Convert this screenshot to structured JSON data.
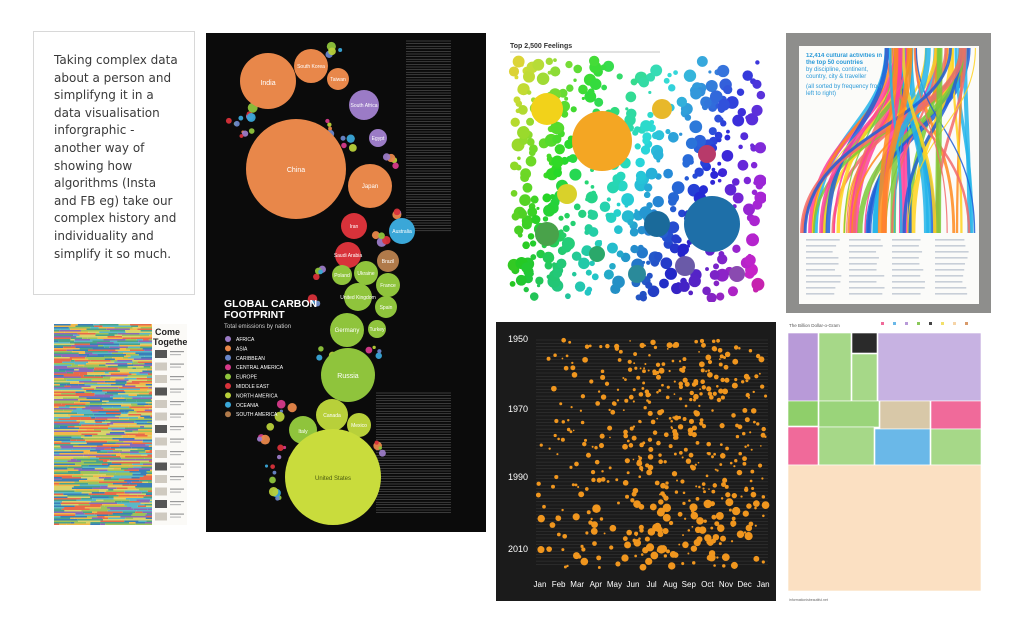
{
  "note": {
    "text": "Taking complex data about a person and simplifyng it in a data visualisation inforgraphic - another way of showing how algorithms (Insta and FB eg) take our complex history and individuality and simplify it so much."
  },
  "come_together": {
    "title_line1": "Come",
    "title_line2": "Together"
  },
  "carbon": {
    "title_line1": "GLOBAL CARBON",
    "title_line2": "FOOTPRINT",
    "subtitle": "Total emissions by nation",
    "legend": [
      {
        "label": "AFRICA",
        "color": "#9b7bc6"
      },
      {
        "label": "ASIA",
        "color": "#e8874a"
      },
      {
        "label": "CARIBBEAN",
        "color": "#6a86c9"
      },
      {
        "label": "CENTRAL AMERICA",
        "color": "#d63a8a"
      },
      {
        "label": "EUROPE",
        "color": "#8fc43c"
      },
      {
        "label": "MIDDLE EAST",
        "color": "#d8323a"
      },
      {
        "label": "NORTH AMERICA",
        "color": "#b8d03a"
      },
      {
        "label": "OCEANIA",
        "color": "#3aa7d8"
      },
      {
        "label": "SOUTH AMERICA",
        "color": "#b07a4a"
      }
    ],
    "countries": {
      "india": "India",
      "south_korea": "South Korea",
      "taiwan": "Taiwan",
      "china": "China",
      "japan": "Japan",
      "south_africa": "South Africa",
      "egypt": "Egypt",
      "australia": "Australia",
      "saudi": "Saudi Arabia",
      "brazil": "Brazil",
      "iran": "Iran",
      "poland": "Poland",
      "ukraine": "Ukraine",
      "france": "France",
      "uk": "United Kingdom",
      "spain": "Spain",
      "germany": "Germany",
      "turkey": "Turkey",
      "russia": "Russia",
      "italy": "Italy",
      "canada": "Canada",
      "mexico": "Mexico",
      "usa": "United States"
    }
  },
  "feelings": {
    "title": "Top 2,500 Feelings"
  },
  "cultural": {
    "headline": "12,414 cultural activities in the top 50 countries",
    "sub": "by discipline, continent, country, city & traveller",
    "note": "(all sorted by frequency from left to right)"
  },
  "timeline": {
    "years": [
      "1950",
      "1970",
      "1990",
      "2010"
    ],
    "months": [
      "Jan",
      "Feb",
      "Mar",
      "Apr",
      "May",
      "Jun",
      "Jul",
      "Aug",
      "Sep",
      "Oct",
      "Nov",
      "Dec",
      "Jan"
    ]
  },
  "billion": {
    "title": "The Billion Dollar-o-Gram",
    "footer": "informationisbeautiful.net"
  }
}
